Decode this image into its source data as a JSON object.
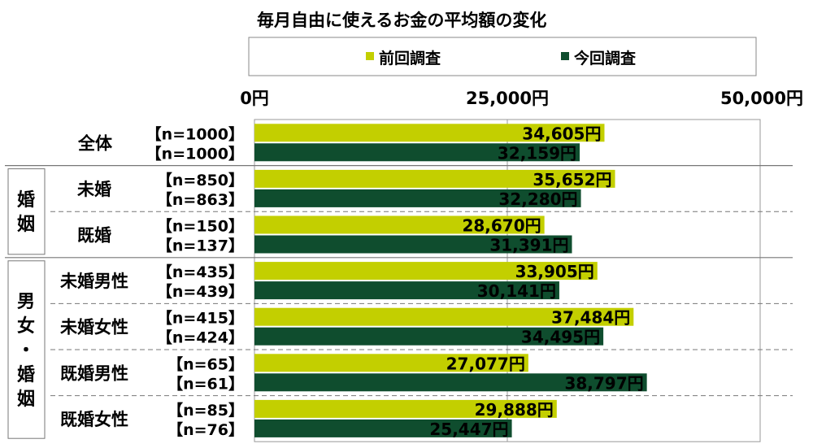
{
  "chart_data": {
    "type": "bar",
    "title": "毎月自由に使えるお金の平均額の変化",
    "legend_position": "top",
    "grid": true,
    "xlim": [
      0,
      50000
    ],
    "tick_values": [
      0,
      25000,
      50000
    ],
    "tick_labels": [
      "0円",
      "25,000円",
      "50,000円"
    ],
    "series": [
      {
        "name": "前回調査",
        "color": "#c3cf00"
      },
      {
        "name": "今回調査",
        "color": "#0f4d2e"
      }
    ],
    "groups": [
      {
        "group": "",
        "rows": [
          {
            "label": "全体",
            "n": [
              "【n=1000】",
              "【n=1000】"
            ],
            "values": [
              34605,
              32159
            ],
            "value_labels": [
              "34,605円",
              "32,159円"
            ]
          }
        ]
      },
      {
        "group": "婚姻",
        "rows": [
          {
            "label": "未婚",
            "n": [
              "【n=850】",
              "【n=863】"
            ],
            "values": [
              35652,
              32280
            ],
            "value_labels": [
              "35,652円",
              "32,280円"
            ]
          },
          {
            "label": "既婚",
            "n": [
              "【n=150】",
              "【n=137】"
            ],
            "values": [
              28670,
              31391
            ],
            "value_labels": [
              "28,670円",
              "31,391円"
            ]
          }
        ]
      },
      {
        "group": "男女・婚姻",
        "rows": [
          {
            "label": "未婚男性",
            "n": [
              "【n=435】",
              "【n=439】"
            ],
            "values": [
              33905,
              30141
            ],
            "value_labels": [
              "33,905円",
              "30,141円"
            ]
          },
          {
            "label": "未婚女性",
            "n": [
              "【n=415】",
              "【n=424】"
            ],
            "values": [
              37484,
              34495
            ],
            "value_labels": [
              "37,484円",
              "34,495円"
            ]
          },
          {
            "label": "既婚男性",
            "n": [
              "【n=65】",
              "【n=61】"
            ],
            "values": [
              27077,
              38797
            ],
            "value_labels": [
              "27,077円",
              "38,797円"
            ]
          },
          {
            "label": "既婚女性",
            "n": [
              "【n=85】",
              "【n=76】"
            ],
            "values": [
              29888,
              25447
            ],
            "value_labels": [
              "29,888円",
              "25,447円"
            ]
          }
        ]
      }
    ]
  }
}
